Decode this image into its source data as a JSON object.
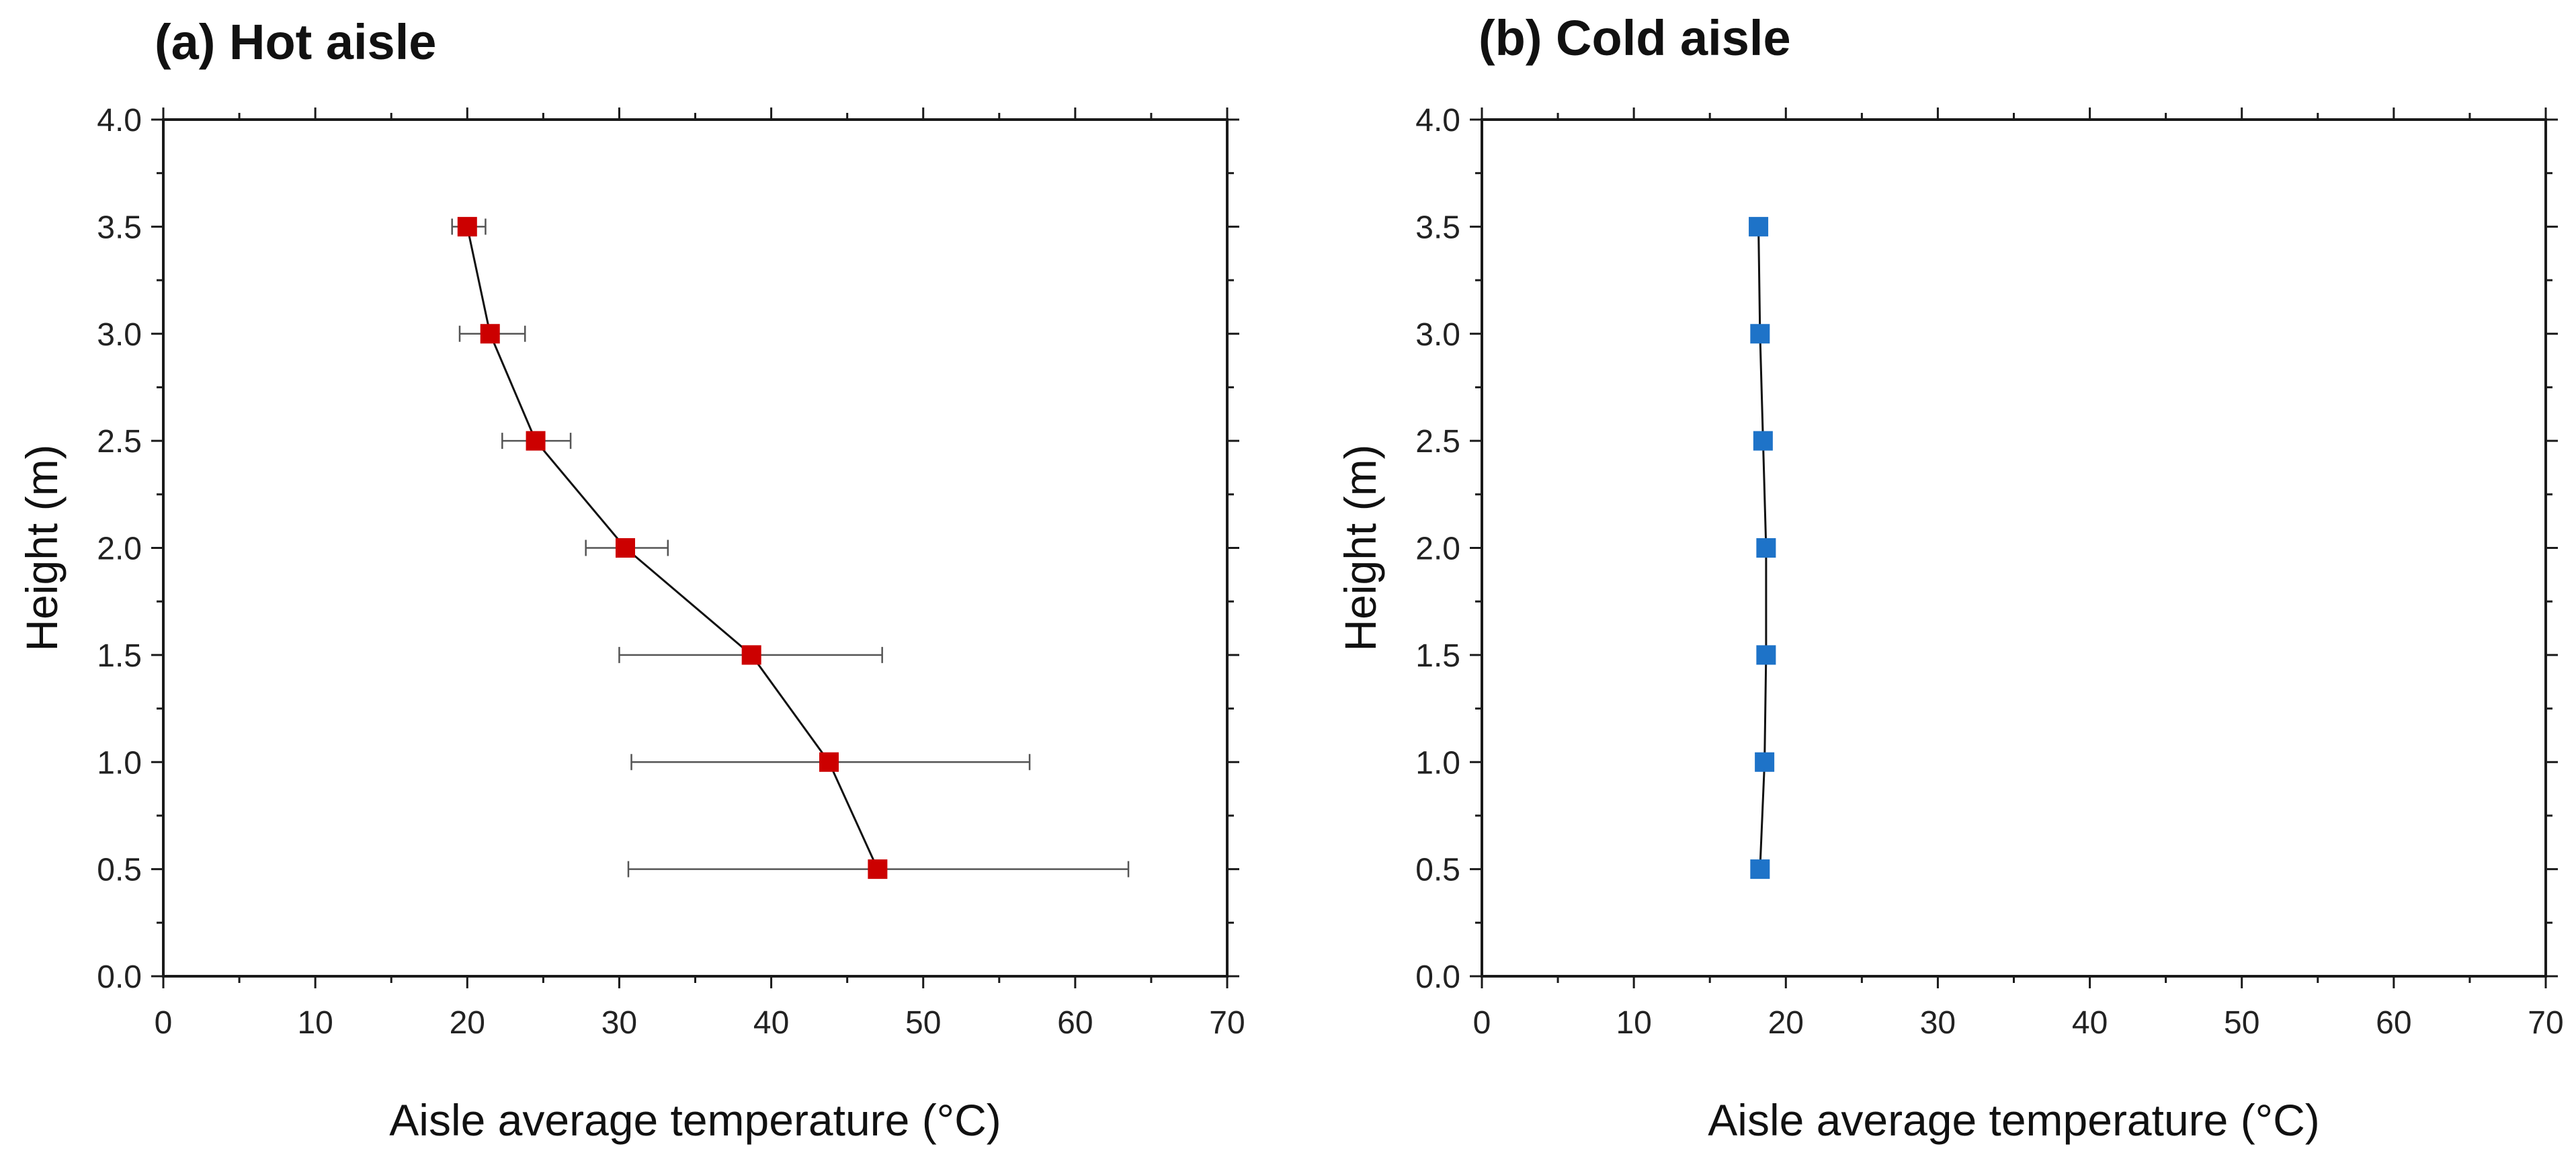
{
  "chart_data": [
    {
      "type": "scatter",
      "title": "(a) Hot aisle",
      "xlabel": "Aisle average temperature (°C)",
      "ylabel": "Height (m)",
      "xlim": [
        0,
        70
      ],
      "ylim": [
        0,
        4
      ],
      "xticks": [
        0,
        10,
        20,
        30,
        40,
        50,
        60,
        70
      ],
      "yticks": [
        0.0,
        0.5,
        1.0,
        1.5,
        2.0,
        2.5,
        3.0,
        3.5,
        4.0
      ],
      "grid": false,
      "series": [
        {
          "name": "Hot aisle",
          "color": "#cc0000",
          "marker": "square",
          "x": [
            20.0,
            21.5,
            24.5,
            30.4,
            38.7,
            43.8,
            47.0
          ],
          "y": [
            3.5,
            3.0,
            2.5,
            2.0,
            1.5,
            1.0,
            0.5
          ],
          "xerr_low": [
            19.0,
            19.5,
            22.3,
            27.8,
            30.0,
            30.8,
            30.6
          ],
          "xerr_high": [
            21.2,
            23.8,
            26.8,
            33.2,
            47.3,
            57.0,
            63.5
          ]
        }
      ]
    },
    {
      "type": "scatter",
      "title": "(b) Cold aisle",
      "xlabel": "Aisle average temperature (°C)",
      "ylabel": "Height (m)",
      "xlim": [
        0,
        70
      ],
      "ylim": [
        0,
        4
      ],
      "xticks": [
        0,
        10,
        20,
        30,
        40,
        50,
        60,
        70
      ],
      "yticks": [
        0.0,
        0.5,
        1.0,
        1.5,
        2.0,
        2.5,
        3.0,
        3.5,
        4.0
      ],
      "grid": false,
      "series": [
        {
          "name": "Cold aisle",
          "color": "#1e73c8",
          "marker": "square",
          "x": [
            18.2,
            18.3,
            18.5,
            18.7,
            18.7,
            18.6,
            18.3
          ],
          "y": [
            3.5,
            3.0,
            2.5,
            2.0,
            1.5,
            1.0,
            0.5
          ],
          "xerr_low": [
            17.9,
            18.0,
            18.2,
            18.4,
            18.4,
            18.3,
            18.0
          ],
          "xerr_high": [
            18.5,
            18.6,
            18.8,
            19.0,
            19.0,
            18.9,
            18.6
          ]
        }
      ]
    }
  ]
}
